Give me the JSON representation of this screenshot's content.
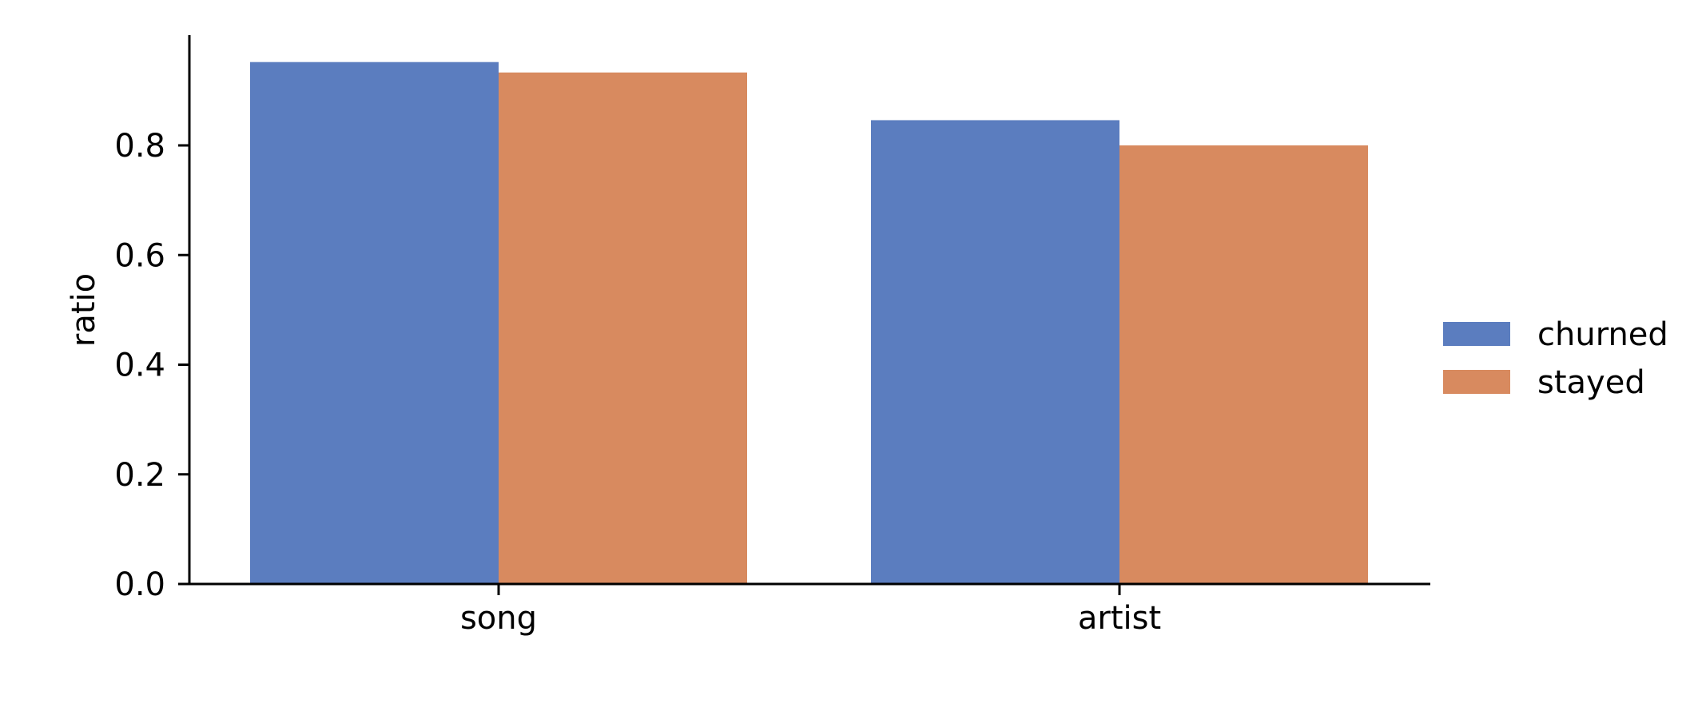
{
  "chart_data": {
    "type": "bar",
    "categories": [
      "song",
      "artist"
    ],
    "series": [
      {
        "name": "churned",
        "values": [
          0.952,
          0.846
        ],
        "color": "#5b7dbf"
      },
      {
        "name": "stayed",
        "values": [
          0.933,
          0.8
        ],
        "color": "#d88a5f"
      }
    ],
    "xlabel": "",
    "ylabel": "ratio",
    "ylim": [
      0,
      1.0
    ],
    "yticks": [
      "0.0",
      "0.2",
      "0.4",
      "0.6",
      "0.8"
    ],
    "grid": false,
    "legend_position": "right"
  }
}
